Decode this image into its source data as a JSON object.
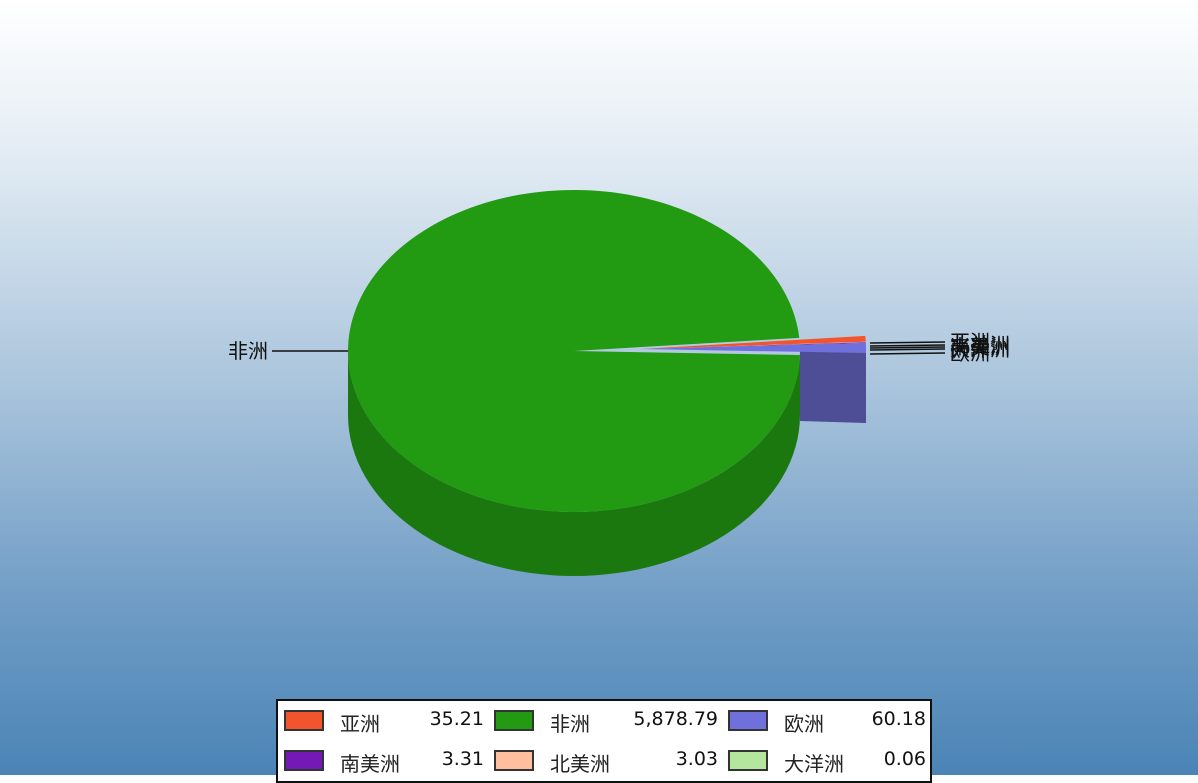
{
  "chart_data": {
    "type": "pie",
    "style": "3d",
    "labels_shown": [
      "非洲",
      "亚洲",
      "欧洲",
      "南美洲",
      "北美洲",
      "大洋洲"
    ],
    "slices": [
      {
        "name": "亚洲",
        "value": 35.21,
        "value_label": "35.21",
        "color": "#f2552b"
      },
      {
        "name": "非洲",
        "value": 5878.79,
        "value_label": "5,878.79",
        "color": "#229a12"
      },
      {
        "name": "欧洲",
        "value": 60.18,
        "value_label": "60.18",
        "color": "#7070dc"
      },
      {
        "name": "南美洲",
        "value": 3.31,
        "value_label": "3.31",
        "color": "#7419b5"
      },
      {
        "name": "北美洲",
        "value": 3.03,
        "value_label": "3.03",
        "color": "#ffbe9e"
      },
      {
        "name": "大洋洲",
        "value": 0.06,
        "value_label": "0.06",
        "color": "#b4e69e"
      }
    ],
    "legend_position": "bottom-center"
  }
}
